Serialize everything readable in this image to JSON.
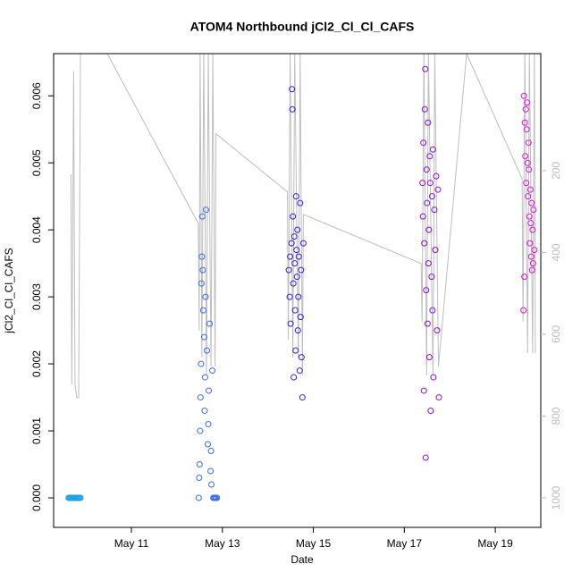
{
  "chart_data": {
    "type": "scatter",
    "title": "ATOM4 Northbound jCl2_Cl_Cl_CAFS",
    "x_label": "Date",
    "y_label": "jCl2_Cl_Cl_CAFS",
    "xlim": [
      9.29,
      20.0
    ],
    "xticks": [
      {
        "value": 11,
        "label": "May 11"
      },
      {
        "value": 13,
        "label": "May 13"
      },
      {
        "value": 15,
        "label": "May 15"
      },
      {
        "value": 17,
        "label": "May 17"
      },
      {
        "value": 19,
        "label": "May 19"
      }
    ],
    "ylim": [
      -0.00044,
      0.00663
    ],
    "yticks": [
      {
        "value": 0,
        "label": "0.000"
      },
      {
        "value": 0.001,
        "label": "0.001"
      },
      {
        "value": 0.002,
        "label": "0.002"
      },
      {
        "value": 0.003,
        "label": "0.003"
      },
      {
        "value": 0.004,
        "label": "0.004"
      },
      {
        "value": 0.005,
        "label": "0.005"
      },
      {
        "value": 0.006,
        "label": "0.006"
      }
    ],
    "y2lim": [
      1072,
      -86
    ],
    "y2ticks": [
      200,
      400,
      600,
      800,
      1000
    ],
    "series": [
      {
        "color": "#bebebe",
        "type": "line",
        "axis": "y2",
        "x": [
          9.67,
          9.69,
          9.73,
          9.76,
          9.8,
          9.84,
          9.88,
          10.47,
          12.47,
          12.49,
          12.51,
          12.55,
          12.59,
          12.65,
          12.69,
          12.75,
          12.79,
          12.84,
          12.86,
          14.43,
          14.45,
          14.49,
          14.55,
          14.59,
          14.67,
          14.71,
          14.76,
          14.78,
          17.37,
          17.39,
          17.43,
          17.49,
          17.53,
          17.63,
          17.67,
          17.75,
          18.37,
          19.59,
          19.61,
          19.65,
          19.71,
          19.75,
          19.82,
          19.86,
          19.88
        ],
        "values": [
          209,
          723,
          -43,
          723,
          755,
          755,
          -86,
          -86,
          329,
          591,
          -86,
          657,
          -86,
          700,
          -86,
          679,
          -86,
          679,
          110,
          252,
          613,
          -86,
          657,
          -86,
          657,
          -86,
          700,
          307,
          427,
          569,
          -86,
          700,
          -86,
          700,
          -86,
          679,
          -86,
          220,
          569,
          -86,
          646,
          -86,
          646,
          -86,
          646
        ]
      },
      {
        "color": "#1ea0e6",
        "x": [
          9.62,
          9.64,
          9.66,
          9.68,
          9.7,
          9.72,
          9.74,
          9.76,
          9.78,
          9.8,
          9.82,
          9.84,
          9.86,
          9.88
        ],
        "values": [
          0,
          0,
          0,
          0,
          0,
          0,
          0,
          0,
          0,
          0,
          0,
          0,
          0,
          0
        ]
      },
      {
        "color": "#3a6ef0",
        "x": [
          12.48,
          12.49,
          12.5,
          12.51,
          12.52,
          12.53,
          12.54,
          12.55,
          12.56,
          12.57,
          12.58,
          12.6,
          12.61,
          12.62,
          12.63,
          12.64,
          12.66,
          12.68,
          12.69,
          12.7,
          12.72,
          12.74,
          12.75,
          12.76,
          12.78,
          12.8,
          12.82,
          12.84,
          12.86,
          12.88
        ],
        "values": [
          0,
          0.0003,
          0.0005,
          0.001,
          0.0015,
          0.002,
          0.0032,
          0.0036,
          0.0042,
          0.0034,
          0.0028,
          0.0024,
          0.0013,
          0.0018,
          0.003,
          0.0043,
          0.0022,
          0.0008,
          0.0011,
          0.0016,
          0.0026,
          0.0004,
          0.0007,
          0.0002,
          0.0019,
          0,
          0,
          0,
          0,
          0
        ]
      },
      {
        "color": "#3a1ee0",
        "x": [
          14.46,
          14.48,
          14.49,
          14.5,
          14.52,
          14.53,
          14.54,
          14.55,
          14.56,
          14.57,
          14.58,
          14.59,
          14.6,
          14.61,
          14.62,
          14.63,
          14.64,
          14.65,
          14.66,
          14.67,
          14.68,
          14.7,
          14.71,
          14.72,
          14.73,
          14.74,
          14.76,
          14.78
        ],
        "values": [
          0.0034,
          0.003,
          0.0036,
          0.0026,
          0.0038,
          0.0061,
          0.0058,
          0.0042,
          0.0032,
          0.0018,
          0.0039,
          0.0035,
          0.0028,
          0.0022,
          0.0045,
          0.0037,
          0.0033,
          0.004,
          0.0025,
          0.003,
          0.0036,
          0.0019,
          0.0044,
          0.0027,
          0.0034,
          0.0021,
          0.0015,
          0.0038
        ]
      },
      {
        "color": "#8a10d8",
        "x": [
          17.4,
          17.41,
          17.42,
          17.43,
          17.44,
          17.45,
          17.46,
          17.47,
          17.48,
          17.49,
          17.5,
          17.51,
          17.52,
          17.53,
          17.54,
          17.55,
          17.56,
          17.57,
          17.58,
          17.6,
          17.61,
          17.62,
          17.63,
          17.64,
          17.66,
          17.68,
          17.7,
          17.72,
          17.74,
          17.76
        ],
        "values": [
          0.0047,
          0.0042,
          0.0053,
          0.0016,
          0.0038,
          0.0058,
          0.0064,
          0.0006,
          0.0031,
          0.0049,
          0.0044,
          0.0026,
          0.0056,
          0.0035,
          0.004,
          0.0021,
          0.0051,
          0.0047,
          0.0013,
          0.0033,
          0.0045,
          0.0028,
          0.0052,
          0.0018,
          0.0043,
          0.0037,
          0.0048,
          0.0025,
          0.0046,
          0.0015
        ]
      },
      {
        "color": "#e010d8",
        "x": [
          19.62,
          19.63,
          19.64,
          19.65,
          19.66,
          19.67,
          19.68,
          19.69,
          19.7,
          19.71,
          19.72,
          19.73,
          19.74,
          19.75,
          19.76,
          19.77,
          19.78,
          19.79,
          19.8,
          19.81,
          19.82,
          19.83,
          19.84,
          19.86
        ],
        "values": [
          0.0028,
          0.006,
          0.0033,
          0.0056,
          0.0051,
          0.0058,
          0.0047,
          0.0055,
          0.0059,
          0.005,
          0.0045,
          0.0053,
          0.0049,
          0.0042,
          0.0038,
          0.0046,
          0.0041,
          0.0036,
          0.0044,
          0.0034,
          0.004,
          0.0035,
          0.0043,
          0.0037
        ]
      }
    ]
  }
}
